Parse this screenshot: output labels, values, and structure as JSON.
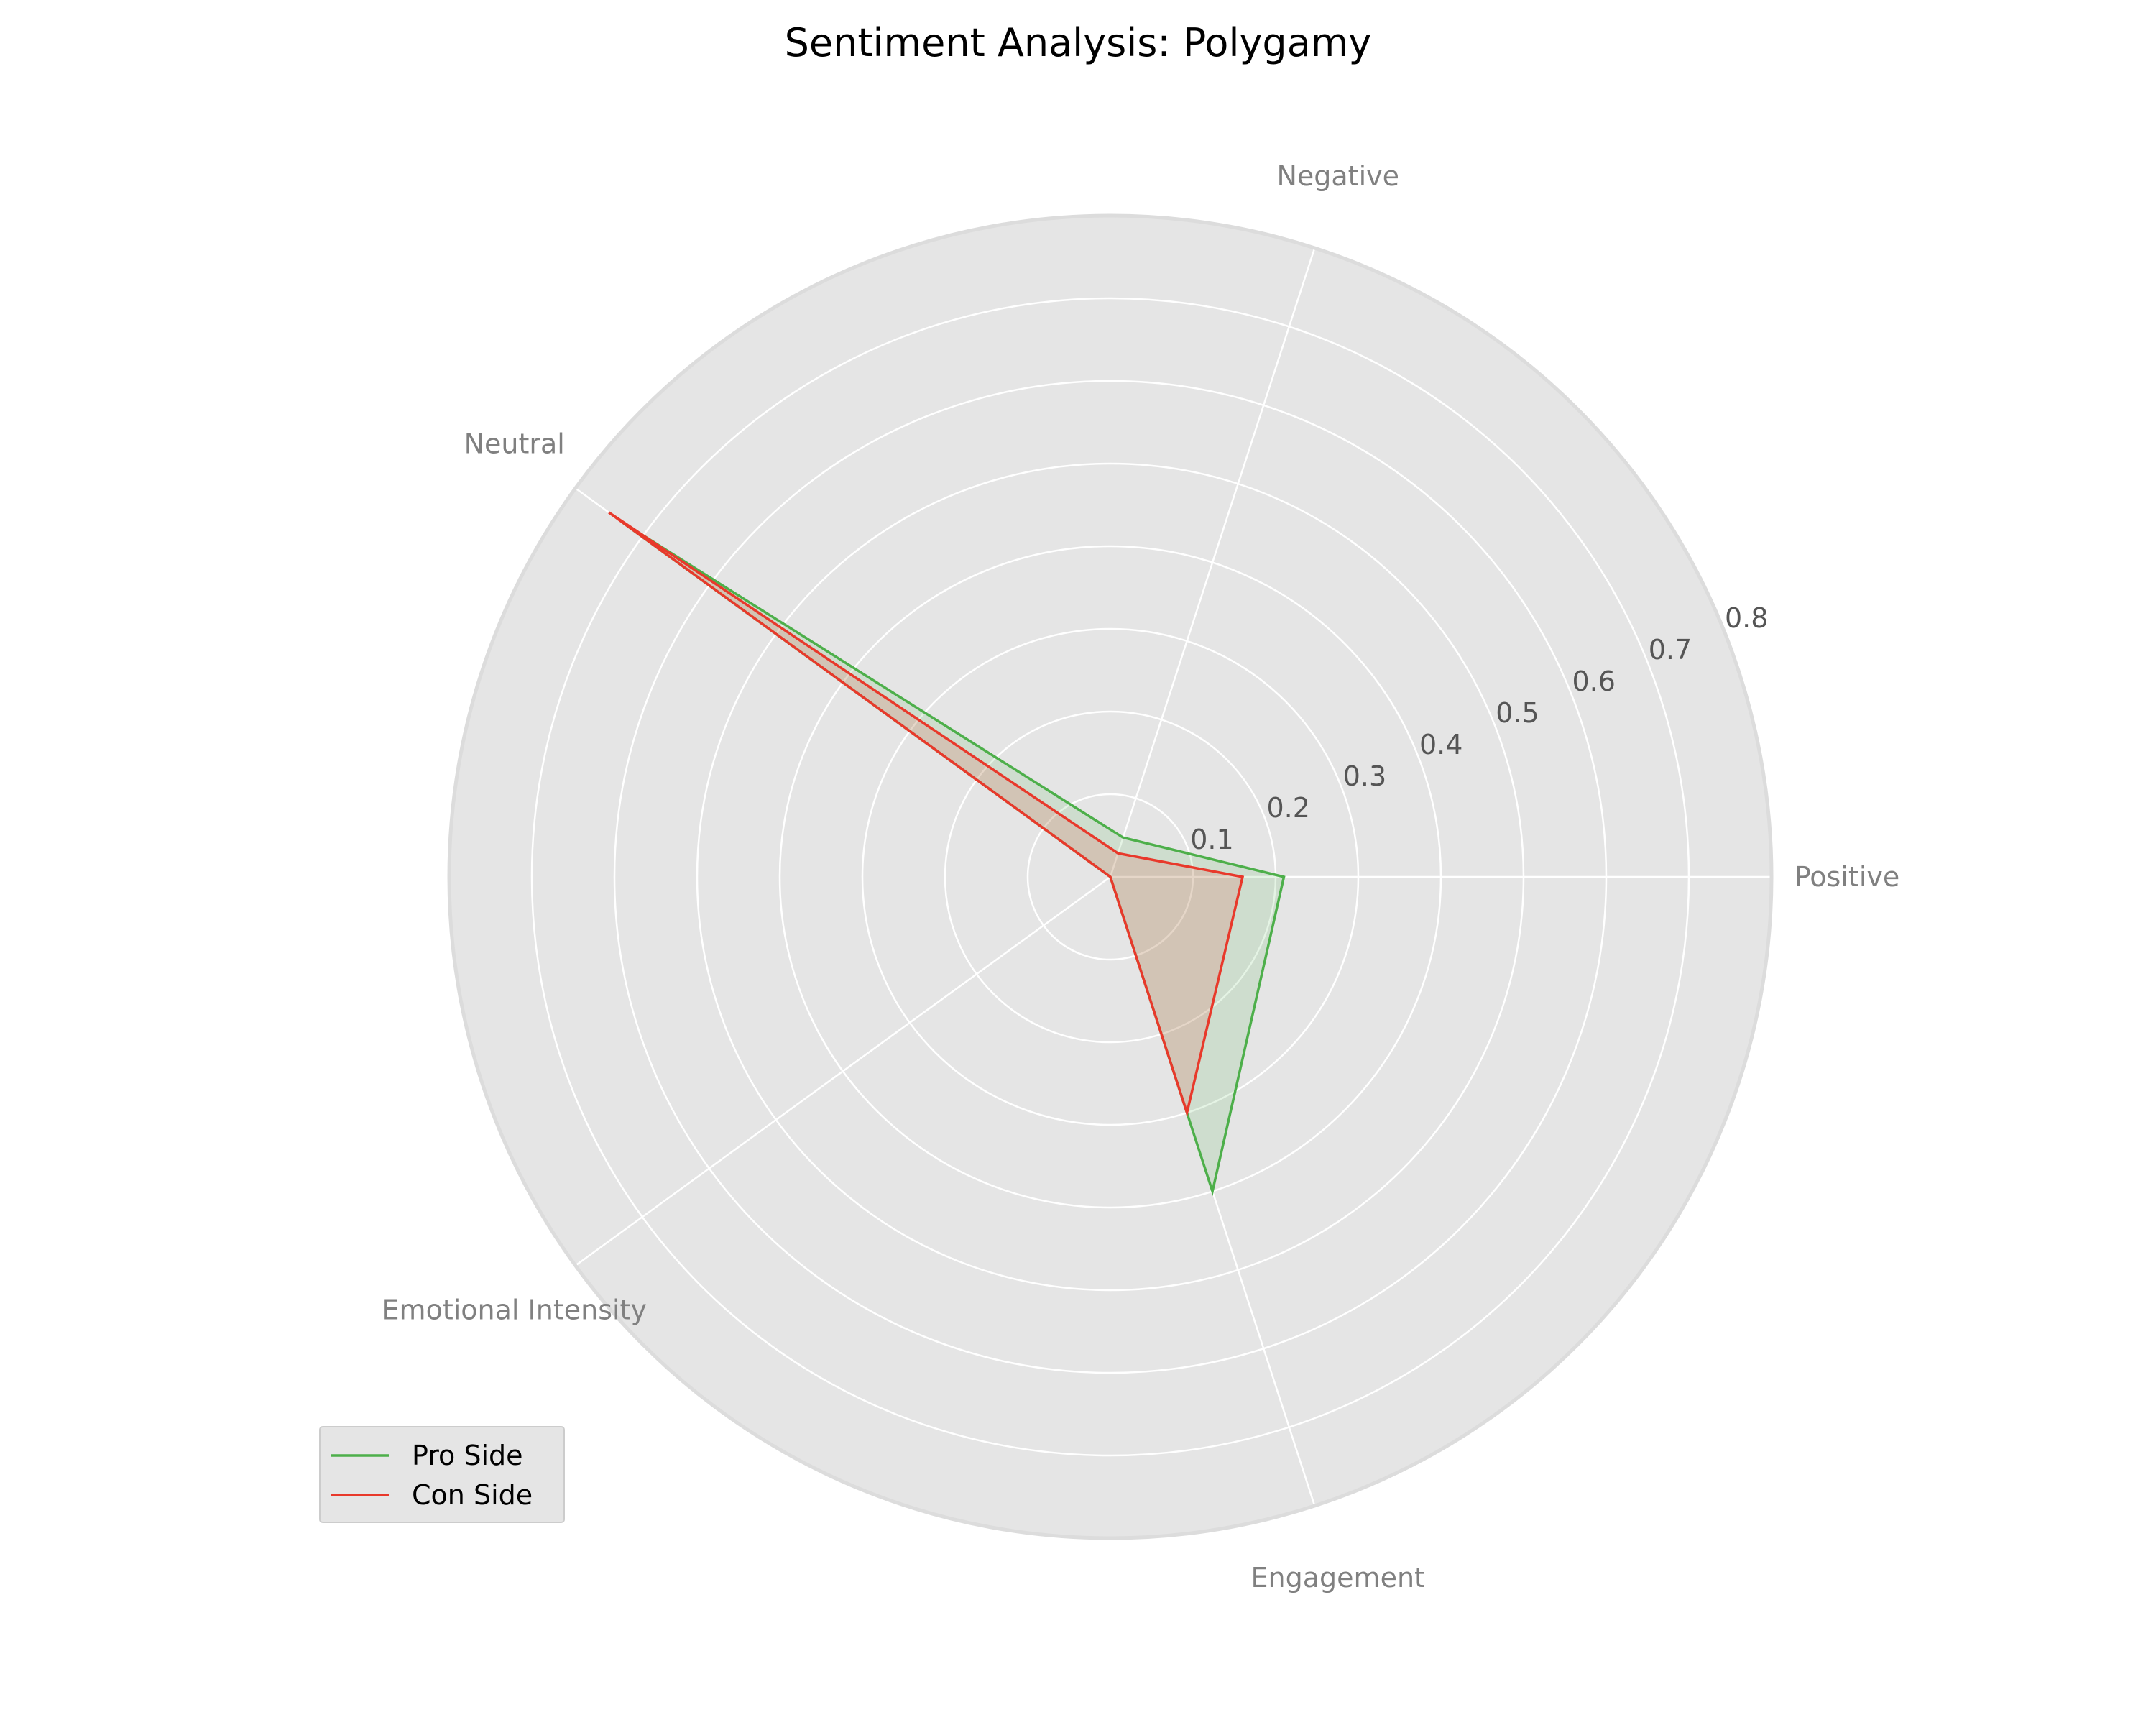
{
  "chart_data": {
    "type": "radar",
    "title": "Sentiment Analysis: Polygamy",
    "categories": [
      "Positive",
      "Negative",
      "Neutral",
      "Emotional Intensity",
      "Engagement"
    ],
    "rticks": [
      0.1,
      0.2,
      0.3,
      0.4,
      0.5,
      0.6,
      0.7,
      0.8
    ],
    "rticks_labels": [
      "0.1",
      "0.2",
      "0.3",
      "0.4",
      "0.5",
      "0.6",
      "0.7",
      "0.8"
    ],
    "rlim": [
      0,
      0.8
    ],
    "grid": true,
    "legend_position": "lower-left",
    "series": [
      {
        "name": "Pro Side",
        "values": [
          0.21,
          0.05,
          0.73,
          0.0,
          0.4
        ],
        "color": "#4daf4a"
      },
      {
        "name": "Con Side",
        "values": [
          0.16,
          0.03,
          0.75,
          0.0,
          0.3
        ],
        "color": "#e8392b"
      }
    ]
  }
}
